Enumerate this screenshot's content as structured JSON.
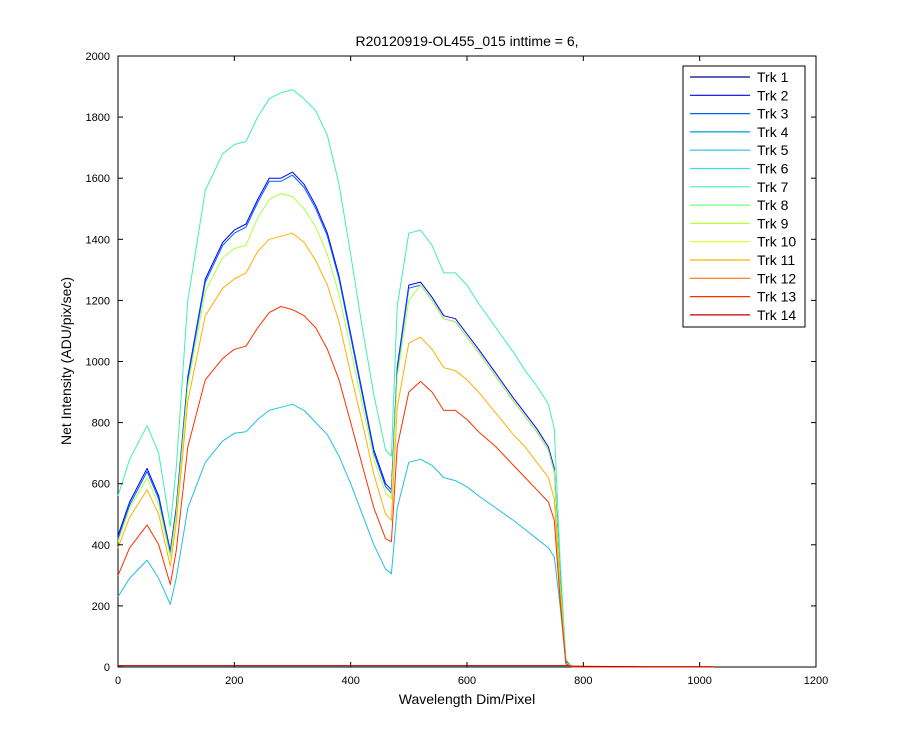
{
  "chart_data": {
    "type": "line",
    "title": "R20120919-OL455_015 inttime = 6,",
    "xlabel": "Wavelength Dim/Pixel",
    "ylabel": "Net Intensity (ADU/pix/sec)",
    "xlim": [
      0,
      1200
    ],
    "ylim": [
      0,
      2000
    ],
    "xticks": [
      0,
      200,
      400,
      600,
      800,
      1000,
      1200
    ],
    "yticks": [
      0,
      200,
      400,
      600,
      800,
      1000,
      1200,
      1400,
      1600,
      1800,
      2000
    ],
    "legend_position": "top-right",
    "grid": false,
    "x": [
      0,
      20,
      50,
      70,
      90,
      100,
      120,
      150,
      180,
      200,
      220,
      240,
      260,
      280,
      300,
      320,
      340,
      360,
      380,
      400,
      420,
      440,
      460,
      470,
      480,
      500,
      520,
      540,
      560,
      580,
      600,
      620,
      650,
      680,
      700,
      720,
      740,
      750,
      760,
      770,
      780,
      800,
      900,
      1024
    ],
    "series": [
      {
        "name": "Trk 1",
        "color": "#00008f",
        "values": [
          2,
          2,
          2,
          2,
          2,
          2,
          2,
          2,
          2,
          2,
          2,
          2,
          2,
          2,
          2,
          2,
          2,
          2,
          2,
          2,
          2,
          2,
          2,
          2,
          2,
          2,
          2,
          2,
          2,
          2,
          2,
          2,
          2,
          2,
          2,
          2,
          2,
          2,
          2,
          2,
          1,
          1,
          1,
          1
        ]
      },
      {
        "name": "Trk 2",
        "color": "#0000ff",
        "values": [
          430,
          540,
          650,
          560,
          380,
          520,
          950,
          1270,
          1390,
          1430,
          1450,
          1530,
          1600,
          1600,
          1620,
          1580,
          1510,
          1420,
          1280,
          1090,
          900,
          710,
          600,
          580,
          980,
          1250,
          1260,
          1210,
          1150,
          1140,
          1090,
          1040,
          960,
          880,
          830,
          780,
          720,
          650,
          300,
          20,
          2,
          0,
          0,
          0
        ]
      },
      {
        "name": "Trk 3",
        "color": "#0060ff",
        "values": [
          420,
          530,
          640,
          550,
          375,
          510,
          940,
          1260,
          1380,
          1420,
          1440,
          1520,
          1590,
          1590,
          1610,
          1570,
          1500,
          1410,
          1270,
          1080,
          890,
          700,
          590,
          570,
          970,
          1240,
          1250,
          1200,
          1140,
          1130,
          1080,
          1030,
          950,
          870,
          820,
          770,
          710,
          640,
          280,
          15,
          2,
          0,
          0,
          0
        ]
      },
      {
        "name": "Trk 4",
        "color": "#00a0c0",
        "values": [
          3,
          3,
          3,
          3,
          3,
          3,
          3,
          3,
          3,
          3,
          3,
          3,
          3,
          3,
          3,
          3,
          3,
          3,
          3,
          3,
          3,
          3,
          3,
          3,
          3,
          3,
          3,
          3,
          3,
          3,
          3,
          3,
          3,
          3,
          3,
          3,
          3,
          3,
          3,
          3,
          2,
          1,
          1,
          1
        ]
      },
      {
        "name": "Trk 5",
        "color": "#20c0e0",
        "values": [
          230,
          290,
          350,
          290,
          205,
          290,
          520,
          670,
          740,
          765,
          770,
          810,
          840,
          850,
          860,
          840,
          800,
          760,
          690,
          600,
          500,
          400,
          320,
          305,
          520,
          670,
          680,
          660,
          620,
          610,
          590,
          560,
          520,
          480,
          450,
          420,
          390,
          360,
          200,
          10,
          1,
          0,
          0,
          0
        ]
      },
      {
        "name": "Trk 6",
        "color": "#40e0d0",
        "values": [
          3,
          3,
          3,
          3,
          3,
          3,
          3,
          3,
          3,
          3,
          3,
          3,
          3,
          3,
          3,
          3,
          3,
          3,
          3,
          3,
          3,
          3,
          3,
          3,
          3,
          3,
          3,
          3,
          3,
          3,
          3,
          3,
          3,
          3,
          3,
          3,
          3,
          3,
          3,
          3,
          2,
          1,
          1,
          1
        ]
      },
      {
        "name": "Trk 7",
        "color": "#40f0b0",
        "values": [
          560,
          680,
          790,
          700,
          460,
          650,
          1200,
          1560,
          1680,
          1710,
          1720,
          1800,
          1860,
          1880,
          1890,
          1860,
          1820,
          1740,
          1580,
          1350,
          1110,
          890,
          710,
          690,
          1180,
          1420,
          1430,
          1380,
          1290,
          1290,
          1250,
          1190,
          1110,
          1030,
          970,
          920,
          860,
          780,
          350,
          25,
          2,
          0,
          0,
          0
        ]
      },
      {
        "name": "Trk 8",
        "color": "#70ff80",
        "values": [
          4,
          4,
          4,
          4,
          4,
          4,
          4,
          4,
          4,
          4,
          4,
          4,
          4,
          4,
          4,
          4,
          4,
          4,
          4,
          4,
          4,
          4,
          4,
          4,
          4,
          4,
          4,
          4,
          4,
          4,
          4,
          4,
          4,
          4,
          4,
          4,
          4,
          4,
          4,
          4,
          3,
          2,
          1,
          1
        ]
      },
      {
        "name": "Trk 9",
        "color": "#b0ff40",
        "values": [
          410,
          520,
          620,
          530,
          360,
          500,
          920,
          1230,
          1340,
          1370,
          1380,
          1470,
          1530,
          1550,
          1540,
          1500,
          1440,
          1350,
          1220,
          1040,
          860,
          680,
          570,
          550,
          950,
          1200,
          1250,
          1200,
          1140,
          1130,
          1080,
          1030,
          950,
          870,
          820,
          770,
          710,
          640,
          280,
          15,
          2,
          0,
          0,
          0
        ]
      },
      {
        "name": "Trk 10",
        "color": "#e0ff20",
        "values": [
          5,
          5,
          5,
          5,
          5,
          5,
          5,
          5,
          5,
          5,
          5,
          5,
          5,
          5,
          5,
          5,
          5,
          5,
          5,
          5,
          5,
          5,
          5,
          5,
          5,
          5,
          5,
          5,
          5,
          5,
          5,
          5,
          5,
          5,
          5,
          5,
          5,
          5,
          5,
          5,
          3,
          2,
          1,
          1
        ]
      },
      {
        "name": "Trk 11",
        "color": "#ffb000",
        "values": [
          390,
          490,
          580,
          500,
          330,
          470,
          870,
          1150,
          1240,
          1270,
          1290,
          1360,
          1400,
          1410,
          1420,
          1390,
          1330,
          1250,
          1130,
          960,
          800,
          630,
          500,
          480,
          850,
          1060,
          1080,
          1040,
          980,
          970,
          940,
          900,
          830,
          760,
          720,
          670,
          620,
          550,
          250,
          12,
          1,
          0,
          0,
          0
        ]
      },
      {
        "name": "Trk 12",
        "color": "#ff7000",
        "values": [
          5,
          5,
          5,
          5,
          5,
          5,
          5,
          5,
          5,
          5,
          5,
          5,
          5,
          5,
          5,
          5,
          5,
          5,
          5,
          5,
          5,
          5,
          5,
          5,
          5,
          5,
          5,
          5,
          5,
          5,
          5,
          5,
          5,
          5,
          5,
          5,
          5,
          5,
          5,
          5,
          3,
          2,
          1,
          1
        ]
      },
      {
        "name": "Trk 13",
        "color": "#ff3000",
        "values": [
          300,
          390,
          465,
          400,
          270,
          380,
          720,
          940,
          1010,
          1040,
          1050,
          1110,
          1160,
          1180,
          1170,
          1150,
          1110,
          1040,
          940,
          800,
          660,
          520,
          420,
          410,
          720,
          900,
          935,
          900,
          840,
          840,
          810,
          770,
          720,
          660,
          620,
          580,
          540,
          480,
          220,
          10,
          1,
          0,
          0,
          0
        ]
      },
      {
        "name": "Trk 14",
        "color": "#c00000",
        "values": [
          4,
          4,
          4,
          4,
          4,
          4,
          4,
          4,
          4,
          4,
          4,
          4,
          4,
          4,
          4,
          4,
          4,
          4,
          4,
          4,
          4,
          4,
          4,
          4,
          4,
          4,
          4,
          4,
          4,
          4,
          4,
          4,
          4,
          4,
          4,
          4,
          4,
          4,
          4,
          4,
          3,
          2,
          1,
          1
        ]
      }
    ]
  }
}
